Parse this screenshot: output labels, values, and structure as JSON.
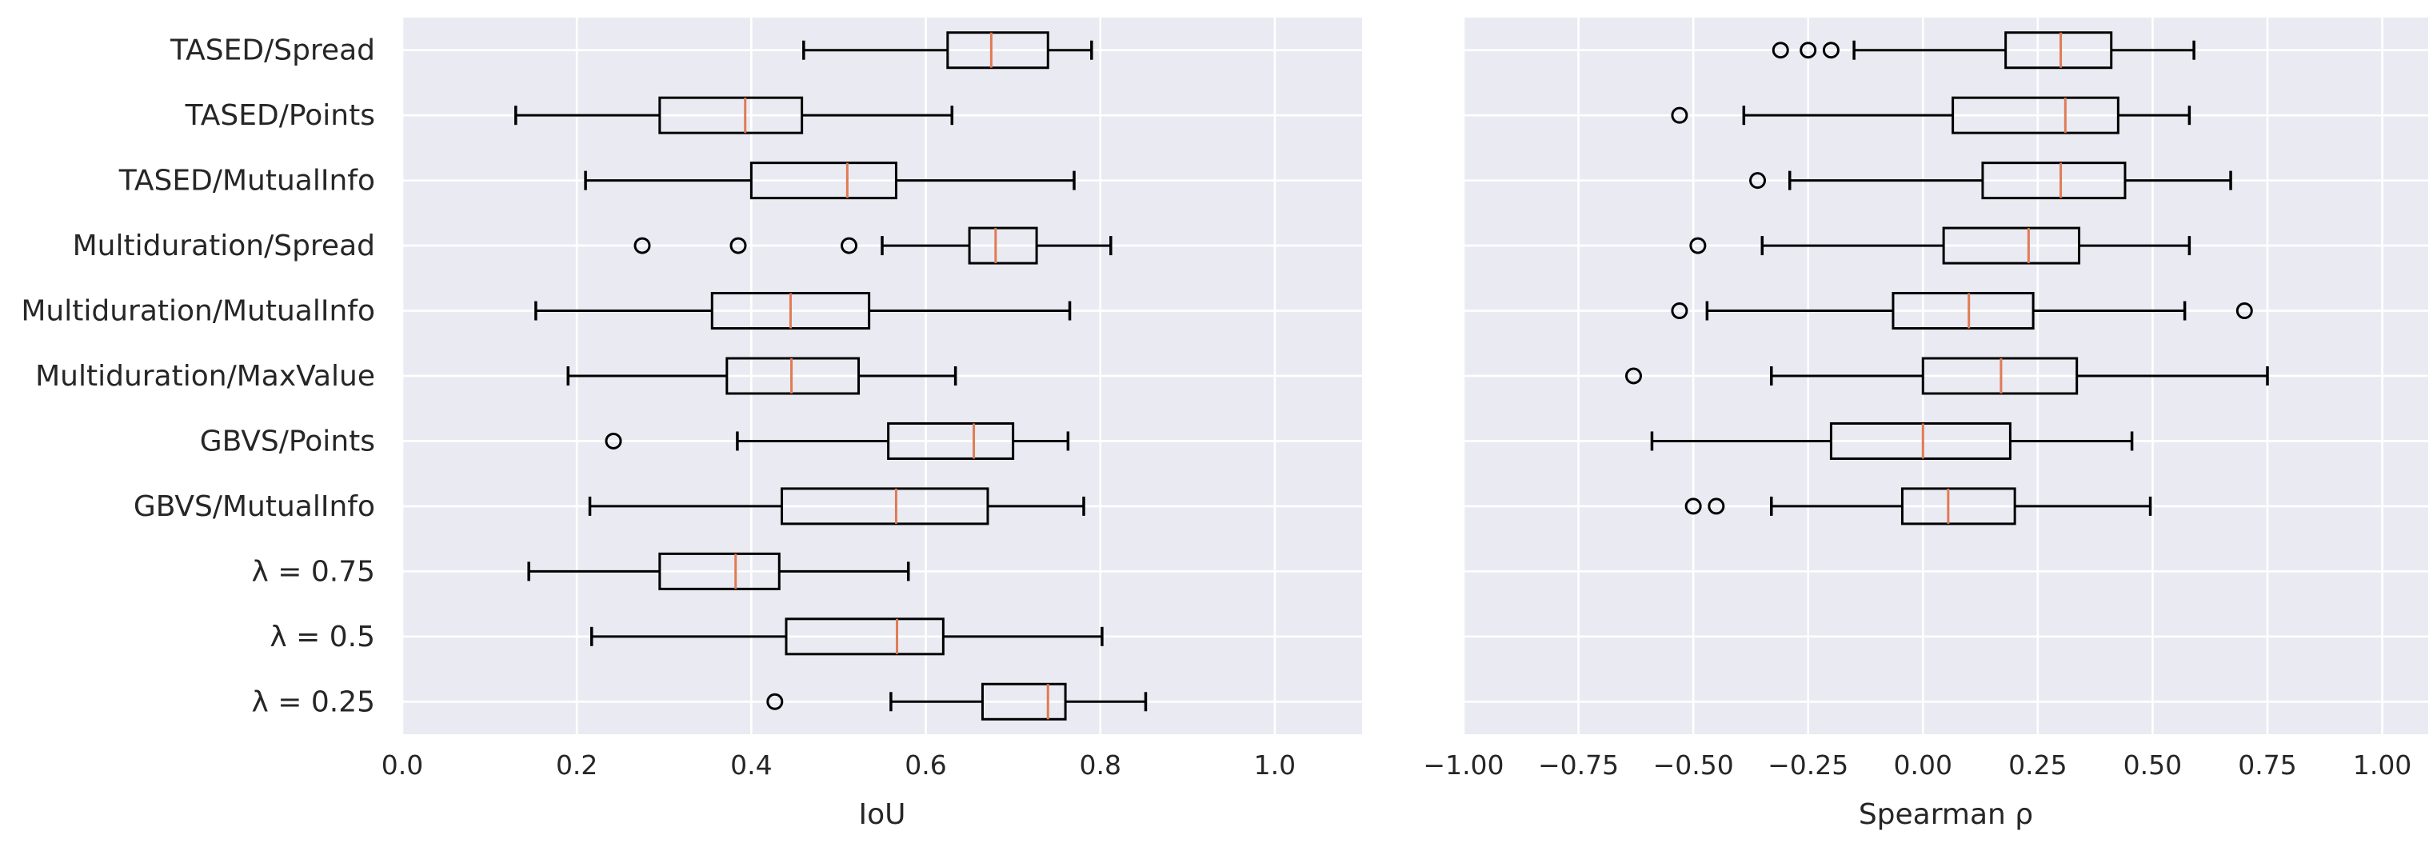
{
  "chart_data": [
    {
      "type": "boxplot",
      "orientation": "horizontal",
      "xlabel": "IoU",
      "xlim": [
        0.0,
        1.1
      ],
      "xticks": [
        "0.0",
        "0.2",
        "0.4",
        "0.6",
        "0.8",
        "1.0"
      ],
      "xtick_values": [
        0.0,
        0.2,
        0.4,
        0.6,
        0.8,
        1.0
      ],
      "grid": true,
      "categories": [
        "TASED/Spread",
        "TASED/Points",
        "TASED/MutualInfo",
        "Multiduration/Spread",
        "Multiduration/MutualInfo",
        "Multiduration/MaxValue",
        "GBVS/Points",
        "GBVS/MutualInfo",
        "λ = 0.75",
        "λ = 0.5",
        "λ = 0.25"
      ],
      "boxes": [
        {
          "whislo": 0.46,
          "q1": 0.625,
          "med": 0.675,
          "q3": 0.74,
          "whishi": 0.79,
          "fliers": []
        },
        {
          "whislo": 0.13,
          "q1": 0.295,
          "med": 0.393,
          "q3": 0.458,
          "whishi": 0.63,
          "fliers": []
        },
        {
          "whislo": 0.21,
          "q1": 0.4,
          "med": 0.51,
          "q3": 0.566,
          "whishi": 0.77,
          "fliers": []
        },
        {
          "whislo": 0.55,
          "q1": 0.65,
          "med": 0.68,
          "q3": 0.727,
          "whishi": 0.812,
          "fliers": [
            0.275,
            0.385,
            0.512
          ]
        },
        {
          "whislo": 0.153,
          "q1": 0.355,
          "med": 0.445,
          "q3": 0.535,
          "whishi": 0.765,
          "fliers": []
        },
        {
          "whislo": 0.19,
          "q1": 0.372,
          "med": 0.446,
          "q3": 0.523,
          "whishi": 0.634,
          "fliers": []
        },
        {
          "whislo": 0.384,
          "q1": 0.557,
          "med": 0.655,
          "q3": 0.7,
          "whishi": 0.763,
          "fliers": [
            0.242
          ]
        },
        {
          "whislo": 0.215,
          "q1": 0.435,
          "med": 0.566,
          "q3": 0.671,
          "whishi": 0.781,
          "fliers": []
        },
        {
          "whislo": 0.145,
          "q1": 0.295,
          "med": 0.382,
          "q3": 0.432,
          "whishi": 0.58,
          "fliers": []
        },
        {
          "whislo": 0.217,
          "q1": 0.44,
          "med": 0.567,
          "q3": 0.62,
          "whishi": 0.802,
          "fliers": []
        },
        {
          "whislo": 0.56,
          "q1": 0.665,
          "med": 0.74,
          "q3": 0.76,
          "whishi": 0.852,
          "fliers": [
            0.427
          ]
        }
      ]
    },
    {
      "type": "boxplot",
      "orientation": "horizontal",
      "xlabel": "Spearman ρ",
      "xlim": [
        -1.0,
        1.1
      ],
      "xticks": [
        "−1.00",
        "−0.75",
        "−0.50",
        "−0.25",
        "0.00",
        "0.25",
        "0.50",
        "0.75",
        "1.00"
      ],
      "xtick_values": [
        -1.0,
        -0.75,
        -0.5,
        -0.25,
        0.0,
        0.25,
        0.5,
        0.75,
        1.0
      ],
      "grid": true,
      "categories_shared": true,
      "boxes": [
        {
          "whislo": -0.15,
          "q1": 0.18,
          "med": 0.3,
          "q3": 0.41,
          "whishi": 0.59,
          "fliers": [
            -0.31,
            -0.25,
            -0.2
          ]
        },
        {
          "whislo": -0.39,
          "q1": 0.065,
          "med": 0.31,
          "q3": 0.425,
          "whishi": 0.58,
          "fliers": [
            -0.53
          ]
        },
        {
          "whislo": -0.29,
          "q1": 0.13,
          "med": 0.3,
          "q3": 0.44,
          "whishi": 0.67,
          "fliers": [
            -0.36
          ]
        },
        {
          "whislo": -0.35,
          "q1": 0.045,
          "med": 0.23,
          "q3": 0.34,
          "whishi": 0.58,
          "fliers": [
            -0.49
          ]
        },
        {
          "whislo": -0.47,
          "q1": -0.065,
          "med": 0.1,
          "q3": 0.24,
          "whishi": 0.57,
          "fliers": [
            -0.53,
            0.7
          ]
        },
        {
          "whislo": -0.33,
          "q1": 0.0,
          "med": 0.17,
          "q3": 0.335,
          "whishi": 0.75,
          "fliers": [
            -0.63
          ]
        },
        {
          "whislo": -0.59,
          "q1": -0.2,
          "med": 0.0,
          "q3": 0.19,
          "whishi": 0.455,
          "fliers": []
        },
        {
          "whislo": -0.33,
          "q1": -0.045,
          "med": 0.055,
          "q3": 0.2,
          "whishi": 0.495,
          "fliers": [
            -0.5,
            -0.45
          ]
        },
        null,
        null,
        null
      ]
    }
  ],
  "colors": {
    "panel_background": "#eaeaf2",
    "grid": "#ffffff",
    "box_edge": "#000000",
    "median": "#e07b54",
    "text": "#262626"
  }
}
